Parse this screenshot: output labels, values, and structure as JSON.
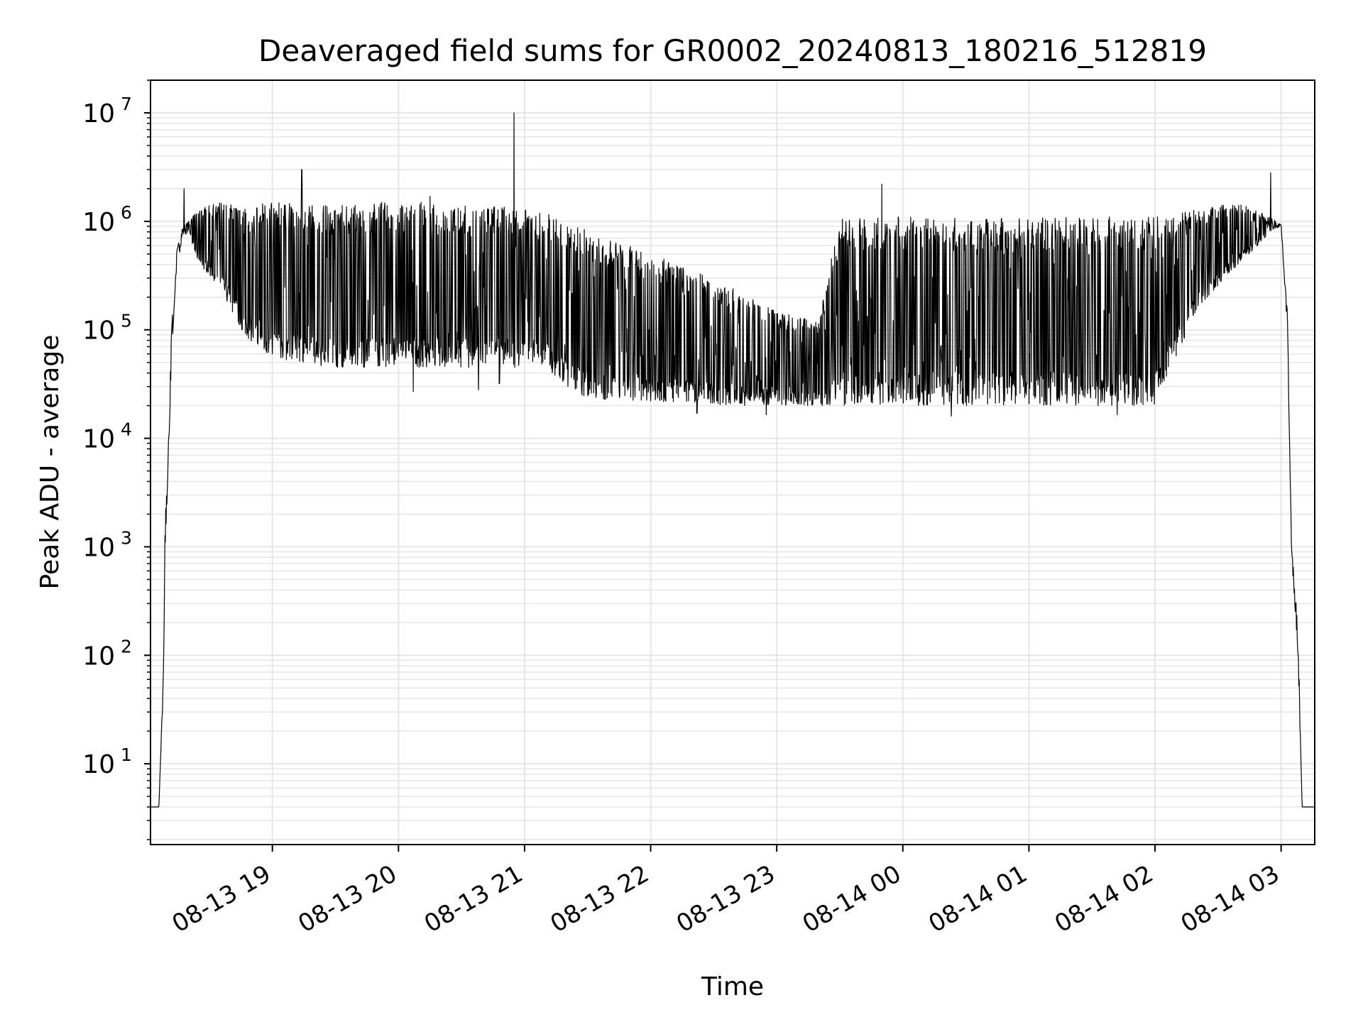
{
  "chart_data": {
    "type": "line",
    "title": "Deaveraged field sums for GR0002_20240813_180216_512819",
    "xlabel": "Time",
    "ylabel": "Peak ADU - average",
    "x_scale": "time",
    "y_scale": "log",
    "xlim": [
      "2024-08-13T18:02",
      "2024-08-14T03:16"
    ],
    "ylim": [
      1.8,
      20000000
    ],
    "grid": true,
    "line_color": "#000000",
    "grid_color": "#e6e6e6",
    "x_ticks": [
      {
        "t": "2024-08-13T19:00",
        "label": "08-13 19"
      },
      {
        "t": "2024-08-13T20:00",
        "label": "08-13 20"
      },
      {
        "t": "2024-08-13T21:00",
        "label": "08-13 21"
      },
      {
        "t": "2024-08-13T22:00",
        "label": "08-13 22"
      },
      {
        "t": "2024-08-13T23:00",
        "label": "08-13 23"
      },
      {
        "t": "2024-08-14T00:00",
        "label": "08-14 00"
      },
      {
        "t": "2024-08-14T01:00",
        "label": "08-14 01"
      },
      {
        "t": "2024-08-14T02:00",
        "label": "08-14 02"
      },
      {
        "t": "2024-08-14T03:00",
        "label": "08-14 03"
      }
    ],
    "y_ticks": [
      {
        "value": 10,
        "base": "10",
        "exp": "1"
      },
      {
        "value": 100,
        "base": "10",
        "exp": "2"
      },
      {
        "value": 1000,
        "base": "10",
        "exp": "3"
      },
      {
        "value": 10000,
        "base": "10",
        "exp": "4"
      },
      {
        "value": 100000,
        "base": "10",
        "exp": "5"
      },
      {
        "value": 1000000,
        "base": "10",
        "exp": "6"
      },
      {
        "value": 10000000,
        "base": "10",
        "exp": "7"
      }
    ],
    "series": [
      {
        "envelope": [
          {
            "t": "2024-08-13T18:02",
            "low": 4,
            "high": 4
          },
          {
            "t": "2024-08-13T18:06",
            "low": 4,
            "high": 4
          },
          {
            "t": "2024-08-13T18:08",
            "low": 40,
            "high": 60
          },
          {
            "t": "2024-08-13T18:09",
            "low": 1000,
            "high": 2000
          },
          {
            "t": "2024-08-13T18:10",
            "low": 3000,
            "high": 4000
          },
          {
            "t": "2024-08-13T18:12",
            "low": 50000,
            "high": 100000
          },
          {
            "t": "2024-08-13T18:14",
            "low": 300000,
            "high": 500000
          },
          {
            "t": "2024-08-13T18:17",
            "low": 700000,
            "high": 900000
          },
          {
            "t": "2024-08-13T18:20",
            "low": 800000,
            "high": 1000000
          },
          {
            "t": "2024-08-13T18:25",
            "low": 400000,
            "high": 1300000
          },
          {
            "t": "2024-08-13T18:35",
            "low": 250000,
            "high": 1500000
          },
          {
            "t": "2024-08-13T18:45",
            "low": 100000,
            "high": 1400000
          },
          {
            "t": "2024-08-13T18:55",
            "low": 60000,
            "high": 1500000
          },
          {
            "t": "2024-08-13T19:10",
            "low": 50000,
            "high": 1500000
          },
          {
            "t": "2024-08-13T19:30",
            "low": 45000,
            "high": 1400000
          },
          {
            "t": "2024-08-13T19:50",
            "low": 45000,
            "high": 1500000
          },
          {
            "t": "2024-08-13T20:10",
            "low": 45000,
            "high": 1500000
          },
          {
            "t": "2024-08-13T20:30",
            "low": 45000,
            "high": 1400000
          },
          {
            "t": "2024-08-13T20:50",
            "low": 45000,
            "high": 1400000
          },
          {
            "t": "2024-08-13T21:10",
            "low": 45000,
            "high": 1200000
          },
          {
            "t": "2024-08-13T21:25",
            "low": 25000,
            "high": 900000
          },
          {
            "t": "2024-08-13T21:40",
            "low": 22000,
            "high": 700000
          },
          {
            "t": "2024-08-13T22:00",
            "low": 22000,
            "high": 500000
          },
          {
            "t": "2024-08-13T22:30",
            "low": 20000,
            "high": 300000
          },
          {
            "t": "2024-08-13T23:00",
            "low": 20000,
            "high": 150000
          },
          {
            "t": "2024-08-13T23:20",
            "low": 20000,
            "high": 120000
          },
          {
            "t": "2024-08-13T23:30",
            "low": 20000,
            "high": 1100000
          },
          {
            "t": "2024-08-14T00:00",
            "low": 20000,
            "high": 1100000
          },
          {
            "t": "2024-08-14T01:00",
            "low": 20000,
            "high": 1100000
          },
          {
            "t": "2024-08-14T02:00",
            "low": 20000,
            "high": 1100000
          },
          {
            "t": "2024-08-14T02:20",
            "low": 150000,
            "high": 1300000
          },
          {
            "t": "2024-08-14T02:40",
            "low": 400000,
            "high": 1500000
          },
          {
            "t": "2024-08-14T02:55",
            "low": 800000,
            "high": 1100000
          },
          {
            "t": "2024-08-14T03:00",
            "low": 900000,
            "high": 950000
          },
          {
            "t": "2024-08-14T03:03",
            "low": 100000,
            "high": 150000
          },
          {
            "t": "2024-08-14T03:05",
            "low": 800,
            "high": 1000
          },
          {
            "t": "2024-08-14T03:08",
            "low": 100,
            "high": 200
          },
          {
            "t": "2024-08-14T03:10",
            "low": 4,
            "high": 4
          },
          {
            "t": "2024-08-14T03:16",
            "low": 4,
            "high": 4
          }
        ],
        "spikes": [
          {
            "t": "2024-08-13T18:18",
            "value": 2000000
          },
          {
            "t": "2024-08-13T19:14",
            "value": 3000000
          },
          {
            "t": "2024-08-13T20:15",
            "value": 1700000
          },
          {
            "t": "2024-08-13T20:55",
            "value": 10000000
          },
          {
            "t": "2024-08-13T23:50",
            "value": 2200000
          },
          {
            "t": "2024-08-14T02:55",
            "value": 2800000
          }
        ],
        "dips": [
          {
            "t": "2024-08-13T20:07",
            "value": 27000
          },
          {
            "t": "2024-08-13T20:38",
            "value": 28000
          },
          {
            "t": "2024-08-13T20:48",
            "value": 32000
          },
          {
            "t": "2024-08-13T22:22",
            "value": 17000
          },
          {
            "t": "2024-08-13T22:55",
            "value": 16500
          },
          {
            "t": "2024-08-14T00:23",
            "value": 16000
          },
          {
            "t": "2024-08-14T01:42",
            "value": 16500
          }
        ]
      }
    ]
  }
}
